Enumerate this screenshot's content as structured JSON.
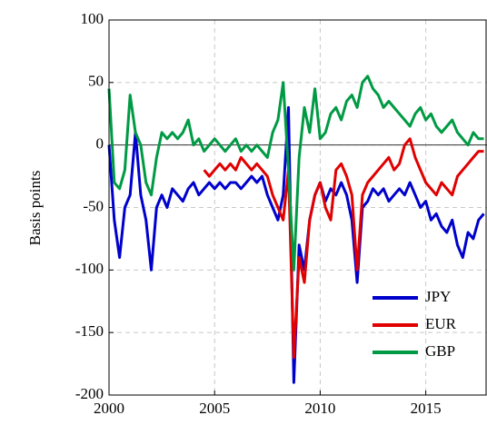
{
  "chart_data": {
    "type": "line",
    "ylabel": "Basis points",
    "x": [
      2000,
      2000.25,
      2000.5,
      2000.75,
      2001,
      2001.25,
      2001.5,
      2001.75,
      2002,
      2002.25,
      2002.5,
      2002.75,
      2003,
      2003.25,
      2003.5,
      2003.75,
      2004,
      2004.25,
      2004.5,
      2004.75,
      2005,
      2005.25,
      2005.5,
      2005.75,
      2006,
      2006.25,
      2006.5,
      2006.75,
      2007,
      2007.25,
      2007.5,
      2007.75,
      2008,
      2008.25,
      2008.5,
      2008.75,
      2009,
      2009.25,
      2009.5,
      2009.75,
      2010,
      2010.25,
      2010.5,
      2010.75,
      2011,
      2011.25,
      2011.5,
      2011.75,
      2012,
      2012.25,
      2012.5,
      2012.75,
      2013,
      2013.25,
      2013.5,
      2013.75,
      2014,
      2014.25,
      2014.5,
      2014.75,
      2015,
      2015.25,
      2015.5,
      2015.75,
      2016,
      2016.25,
      2016.5,
      2016.75,
      2017,
      2017.25,
      2017.5,
      2017.75
    ],
    "series": [
      {
        "name": "JPY",
        "color": "#0000cc",
        "values": [
          0,
          -60,
          -90,
          -50,
          -40,
          10,
          -40,
          -60,
          -100,
          -50,
          -40,
          -50,
          -35,
          -40,
          -45,
          -35,
          -30,
          -40,
          -35,
          -30,
          -35,
          -30,
          -35,
          -30,
          -30,
          -35,
          -30,
          -25,
          -30,
          -25,
          -40,
          -50,
          -60,
          -40,
          30,
          -190,
          -80,
          -100,
          -60,
          -40,
          -30,
          -45,
          -35,
          -40,
          -30,
          -40,
          -60,
          -110,
          -50,
          -45,
          -35,
          -40,
          -35,
          -45,
          -40,
          -35,
          -40,
          -30,
          -40,
          -50,
          -45,
          -60,
          -55,
          -65,
          -70,
          -60,
          -80,
          -90,
          -70,
          -75,
          -60,
          -55
        ]
      },
      {
        "name": "EUR",
        "color": "#e00000",
        "values": [
          null,
          null,
          null,
          null,
          null,
          null,
          null,
          null,
          null,
          null,
          null,
          null,
          null,
          null,
          null,
          null,
          null,
          null,
          -20,
          -25,
          -20,
          -15,
          -20,
          -15,
          -20,
          -10,
          -15,
          -20,
          -15,
          -20,
          -25,
          -40,
          -50,
          -60,
          -20,
          -170,
          -90,
          -110,
          -60,
          -40,
          -30,
          -50,
          -60,
          -20,
          -15,
          -25,
          -40,
          -100,
          -40,
          -30,
          -25,
          -20,
          -15,
          -10,
          -20,
          -15,
          0,
          5,
          -10,
          -20,
          -30,
          -35,
          -40,
          -30,
          -35,
          -40,
          -25,
          -20,
          -15,
          -10,
          -5,
          -5
        ]
      },
      {
        "name": "GBP",
        "color": "#009a44",
        "values": [
          45,
          -30,
          -35,
          -20,
          40,
          10,
          0,
          -30,
          -40,
          -10,
          10,
          5,
          10,
          5,
          10,
          20,
          0,
          5,
          -5,
          0,
          5,
          0,
          -5,
          0,
          5,
          -5,
          0,
          -5,
          0,
          -5,
          -10,
          10,
          20,
          50,
          -20,
          -100,
          -10,
          30,
          10,
          45,
          5,
          10,
          25,
          30,
          20,
          35,
          40,
          30,
          50,
          55,
          45,
          40,
          30,
          35,
          30,
          25,
          20,
          15,
          25,
          30,
          20,
          25,
          15,
          10,
          15,
          20,
          10,
          5,
          0,
          10,
          5,
          5
        ]
      }
    ],
    "xlim": [
      2000,
      2017.9
    ],
    "xticks": [
      2000,
      2005,
      2010,
      2015
    ],
    "ylim": [
      -200,
      100
    ],
    "yticks": [
      -200,
      -150,
      -100,
      -50,
      0,
      50,
      100
    ],
    "grid": true,
    "legend": "lower right"
  }
}
